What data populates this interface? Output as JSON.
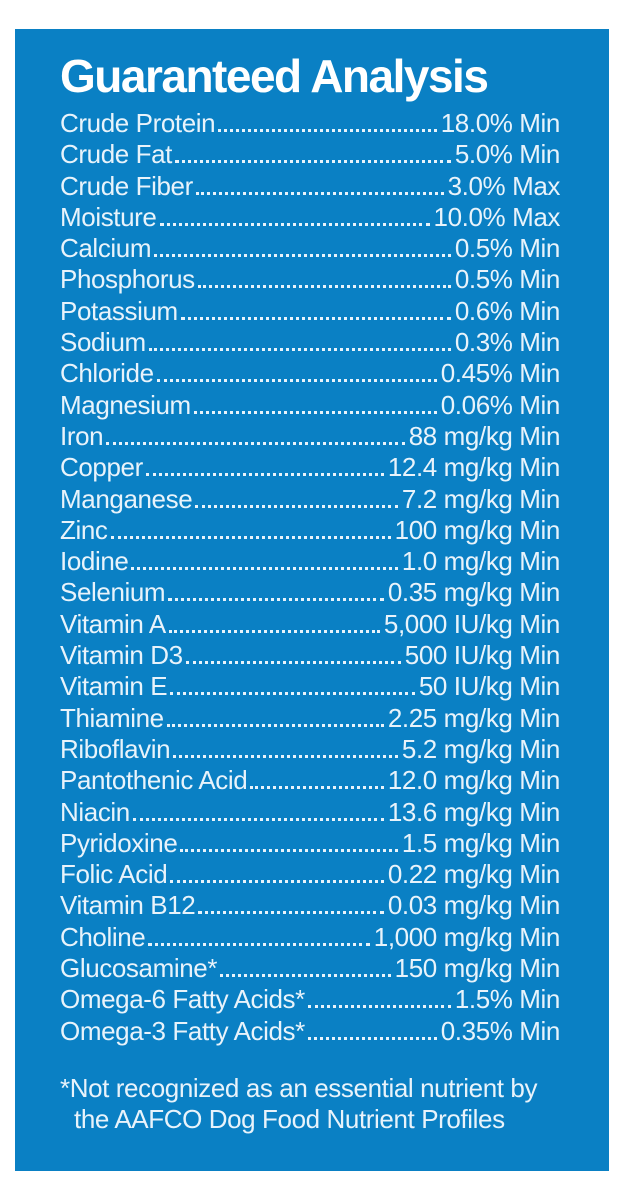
{
  "panel": {
    "title": "Guaranteed Analysis",
    "colors": {
      "background": "#0a80c4",
      "title_text": "#ffffff",
      "body_text": "#e8f3fb",
      "page_background": "#ffffff"
    },
    "rows": [
      {
        "label": "Crude Protein",
        "value": "18.0% Min"
      },
      {
        "label": "Crude Fat",
        "value": "5.0% Min"
      },
      {
        "label": "Crude Fiber",
        "value": "3.0% Max"
      },
      {
        "label": "Moisture",
        "value": "10.0% Max"
      },
      {
        "label": "Calcium",
        "value": "0.5% Min"
      },
      {
        "label": "Phosphorus",
        "value": "0.5% Min"
      },
      {
        "label": "Potassium",
        "value": "0.6% Min"
      },
      {
        "label": "Sodium",
        "value": "0.3% Min"
      },
      {
        "label": "Chloride",
        "value": "0.45% Min"
      },
      {
        "label": "Magnesium",
        "value": "0.06% Min"
      },
      {
        "label": "Iron",
        "value": "88 mg/kg Min"
      },
      {
        "label": "Copper",
        "value": "12.4 mg/kg Min"
      },
      {
        "label": "Manganese",
        "value": "7.2 mg/kg Min"
      },
      {
        "label": "Zinc",
        "value": "100 mg/kg Min"
      },
      {
        "label": "Iodine",
        "value": "1.0 mg/kg Min"
      },
      {
        "label": "Selenium",
        "value": "0.35 mg/kg Min"
      },
      {
        "label": "Vitamin A",
        "value": "5,000 IU/kg Min"
      },
      {
        "label": "Vitamin D3",
        "value": "500 IU/kg Min"
      },
      {
        "label": "Vitamin E",
        "value": "50 IU/kg Min"
      },
      {
        "label": "Thiamine",
        "value": "2.25 mg/kg Min"
      },
      {
        "label": "Riboflavin",
        "value": "5.2 mg/kg Min"
      },
      {
        "label": "Pantothenic Acid",
        "value": "12.0 mg/kg Min"
      },
      {
        "label": "Niacin",
        "value": "13.6 mg/kg Min"
      },
      {
        "label": "Pyridoxine",
        "value": "1.5 mg/kg Min"
      },
      {
        "label": "Folic Acid",
        "value": "0.22 mg/kg Min"
      },
      {
        "label": "Vitamin B12",
        "value": "0.03 mg/kg Min"
      },
      {
        "label": "Choline",
        "value": "1,000 mg/kg Min"
      },
      {
        "label": "Glucosamine*",
        "value": "150 mg/kg Min"
      },
      {
        "label": "Omega-6 Fatty Acids*",
        "value": "1.5% Min"
      },
      {
        "label": "Omega-3 Fatty Acids*",
        "value": "0.35% Min"
      }
    ],
    "footnote": {
      "line1": "*Not recognized as an essential nutrient by",
      "line2": "the AAFCO Dog Food Nutrient Profiles"
    }
  }
}
